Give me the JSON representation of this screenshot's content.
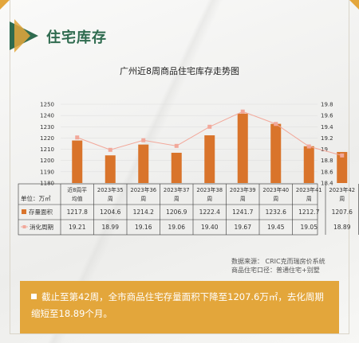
{
  "section_title": "住宅库存",
  "chart_data": {
    "type": "bar",
    "title": "广州近8周商品住宅库存走势图",
    "categories": [
      "近8周平均值",
      "2023年35周",
      "2023年36周",
      "2023年37周",
      "2023年38周",
      "2023年39周",
      "2023年40周",
      "2023年41周",
      "2023年42周"
    ],
    "category_lines": [
      [
        "近8周平",
        "均值"
      ],
      [
        "2023年35",
        "周"
      ],
      [
        "2023年36",
        "周"
      ],
      [
        "2023年37",
        "周"
      ],
      [
        "2023年38",
        "周"
      ],
      [
        "2023年39",
        "周"
      ],
      [
        "2023年40",
        "周"
      ],
      [
        "2023年41",
        "周"
      ],
      [
        "2023年42",
        "周"
      ]
    ],
    "unit_label": "单位：万㎡",
    "series": [
      {
        "name": "存量面积",
        "type": "bar",
        "axis": "left",
        "color": "#d9742b",
        "values": [
          1217.8,
          1204.6,
          1214.2,
          1206.9,
          1222.4,
          1241.7,
          1232.6,
          1212.7,
          1207.6
        ]
      },
      {
        "name": "消化周期",
        "type": "line",
        "axis": "right",
        "color": "#f2a89a",
        "values": [
          19.21,
          18.99,
          19.16,
          19.06,
          19.4,
          19.67,
          19.45,
          19.05,
          18.89
        ]
      }
    ],
    "y_left": {
      "min": 1180,
      "max": 1250,
      "ticks": [
        1180,
        1190,
        1200,
        1210,
        1220,
        1230,
        1240,
        1250
      ]
    },
    "y_right": {
      "min": 18.4,
      "max": 19.8,
      "ticks": [
        18.4,
        18.6,
        18.8,
        19.0,
        19.2,
        19.4,
        19.6,
        19.8
      ],
      "tick_labels": [
        "18.4",
        "18.6",
        "18.8",
        "19",
        "19.2",
        "19.4",
        "19.6",
        "19.8"
      ]
    },
    "table_values": {
      "存量面积": [
        "1217.8",
        "1204.6",
        "1214.2",
        "1206.9",
        "1222.4",
        "1241.7",
        "1232.6",
        "1212.7",
        "1207.6"
      ],
      "消化周期": [
        "19.21",
        "18.99",
        "19.16",
        "19.06",
        "19.40",
        "19.67",
        "19.45",
        "19.05",
        "18.89"
      ]
    }
  },
  "source_lines": [
    "数据来源：  CRIC克而瑞房价系统",
    "商品住宅口径：普通住宅+别墅"
  ],
  "footer_text": "截止至第42周，全市商品住宅存量面积下降至1207.6万㎡，去化周期缩短至18.89个月。",
  "colors": {
    "accent": "#e3a63b",
    "brand_green": "#2f6b4f",
    "bar": "#d9742b",
    "line": "#f2a89a"
  }
}
